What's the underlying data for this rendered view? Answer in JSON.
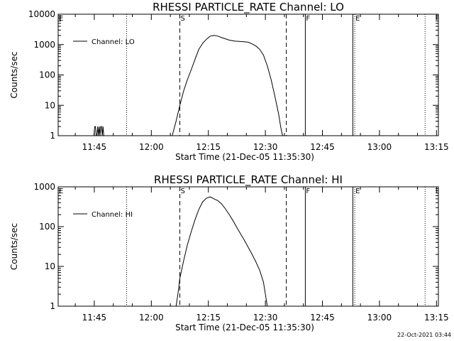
{
  "footer": {
    "timestamp": "22-Oct-2021 03:44"
  },
  "chart_data": [
    {
      "type": "line",
      "title": "RHESSI PARTICLE_RATE Channel: LO",
      "xlabel": "Start Time (21-Dec-05 11:35:30)",
      "ylabel": "Counts/sec",
      "yscale": "log",
      "ylim": [
        1,
        10000
      ],
      "xlim": [
        "11:35:30",
        "13:15:30"
      ],
      "x_ticks": [
        "11:45",
        "12:00",
        "12:15",
        "12:30",
        "12:45",
        "13:00",
        "13:15"
      ],
      "y_ticks": [
        "1",
        "10",
        "100",
        "1000",
        "10000"
      ],
      "legend": {
        "position": "top-left",
        "entries": [
          {
            "label": "Channel: LO"
          }
        ]
      },
      "grid": false,
      "markers": [
        {
          "label": "E",
          "time": "11:35:30",
          "style": "dotted"
        },
        {
          "label": "",
          "time": "11:53:30",
          "style": "dotted"
        },
        {
          "label": "S",
          "time": "12:07:30",
          "style": "dashed"
        },
        {
          "label": "",
          "time": "12:35:30",
          "style": "dashed"
        },
        {
          "label": "F",
          "time": "12:40:30",
          "style": "solid"
        },
        {
          "label": "",
          "time": "12:53:00",
          "style": "solid"
        },
        {
          "label": "E",
          "time": "12:53:30",
          "style": "dotted"
        },
        {
          "label": "",
          "time": "13:12:00",
          "style": "dotted"
        }
      ],
      "series": [
        {
          "segments": [
            [
              [
                "11:44:30",
                1
              ],
              [
                "11:44:54",
                1
              ],
              [
                "11:45:06",
                2
              ],
              [
                "11:45:18",
                2
              ],
              [
                "11:45:30",
                1
              ],
              [
                "11:45:42",
                1
              ],
              [
                "11:45:54",
                2
              ],
              [
                "11:46:06",
                1
              ],
              [
                "11:46:18",
                2
              ],
              [
                "11:46:30",
                1
              ],
              [
                "11:46:42",
                2
              ],
              [
                "11:46:54",
                2
              ],
              [
                "11:47:06",
                1
              ],
              [
                "11:47:18",
                2
              ],
              [
                "11:47:30",
                1
              ],
              [
                "11:47:42",
                1
              ]
            ],
            [
              [
                "12:05:30",
                1
              ],
              [
                "12:06:30",
                3
              ],
              [
                "12:07:30",
                10
              ],
              [
                "12:08:30",
                30
              ],
              [
                "12:09:30",
                70
              ],
              [
                "12:10:30",
                150
              ],
              [
                "12:11:30",
                330
              ],
              [
                "12:12:30",
                700
              ],
              [
                "12:13:30",
                1100
              ],
              [
                "12:14:30",
                1500
              ],
              [
                "12:15:30",
                1900
              ],
              [
                "12:16:30",
                2000
              ],
              [
                "12:17:30",
                1900
              ],
              [
                "12:18:30",
                1700
              ],
              [
                "12:19:30",
                1550
              ],
              [
                "12:20:30",
                1400
              ],
              [
                "12:22:00",
                1300
              ],
              [
                "12:24:00",
                1250
              ],
              [
                "12:25:30",
                1200
              ],
              [
                "12:26:30",
                1050
              ],
              [
                "12:27:30",
                900
              ],
              [
                "12:28:30",
                700
              ],
              [
                "12:29:30",
                450
              ],
              [
                "12:30:30",
                200
              ],
              [
                "12:31:30",
                70
              ],
              [
                "12:32:30",
                20
              ],
              [
                "12:33:30",
                5
              ],
              [
                "12:34:00",
                2
              ],
              [
                "12:34:30",
                1
              ]
            ]
          ]
        }
      ]
    },
    {
      "type": "line",
      "title": "RHESSI PARTICLE_RATE Channel: HI",
      "xlabel": "Start Time (21-Dec-05 11:35:30)",
      "ylabel": "Counts/sec",
      "yscale": "log",
      "ylim": [
        1,
        1000
      ],
      "xlim": [
        "11:35:30",
        "13:15:30"
      ],
      "x_ticks": [
        "11:45",
        "12:00",
        "12:15",
        "12:30",
        "12:45",
        "13:00",
        "13:15"
      ],
      "y_ticks": [
        "1",
        "10",
        "100",
        "1000"
      ],
      "legend": {
        "position": "top-left",
        "entries": [
          {
            "label": "Channel: HI"
          }
        ]
      },
      "grid": false,
      "markers": [
        {
          "label": "E",
          "time": "11:35:30",
          "style": "dotted"
        },
        {
          "label": "",
          "time": "11:53:30",
          "style": "dotted"
        },
        {
          "label": "S",
          "time": "12:07:30",
          "style": "dashed"
        },
        {
          "label": "",
          "time": "12:35:30",
          "style": "dashed"
        },
        {
          "label": "F",
          "time": "12:40:30",
          "style": "solid"
        },
        {
          "label": "",
          "time": "12:53:00",
          "style": "solid"
        },
        {
          "label": "E",
          "time": "12:53:30",
          "style": "dotted"
        },
        {
          "label": "",
          "time": "13:12:00",
          "style": "dotted"
        }
      ],
      "series": [
        {
          "segments": [
            [
              [
                "12:06:30",
                1
              ],
              [
                "12:07:00",
                2
              ],
              [
                "12:07:30",
                5
              ],
              [
                "12:08:30",
                14
              ],
              [
                "12:09:30",
                35
              ],
              [
                "12:10:30",
                75
              ],
              [
                "12:11:30",
                150
              ],
              [
                "12:12:30",
                270
              ],
              [
                "12:13:30",
                420
              ],
              [
                "12:14:30",
                520
              ],
              [
                "12:15:30",
                560
              ],
              [
                "12:16:30",
                500
              ],
              [
                "12:17:30",
                450
              ],
              [
                "12:18:30",
                370
              ],
              [
                "12:19:30",
                280
              ],
              [
                "12:20:30",
                200
              ],
              [
                "12:21:30",
                140
              ],
              [
                "12:22:30",
                95
              ],
              [
                "12:23:30",
                65
              ],
              [
                "12:24:30",
                45
              ],
              [
                "12:25:30",
                30
              ],
              [
                "12:26:30",
                20
              ],
              [
                "12:27:30",
                13
              ],
              [
                "12:28:30",
                8
              ],
              [
                "12:29:30",
                4
              ],
              [
                "12:30:00",
                2
              ],
              [
                "12:30:30",
                1
              ]
            ]
          ]
        }
      ]
    }
  ]
}
